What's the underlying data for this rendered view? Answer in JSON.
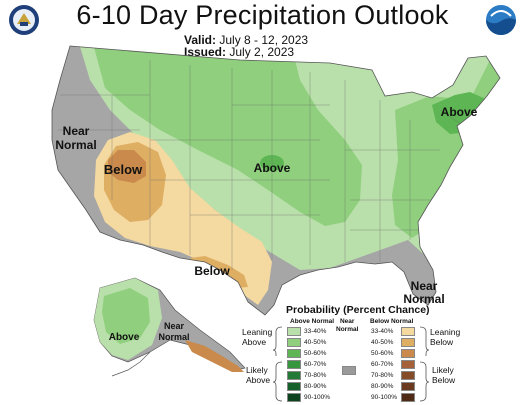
{
  "title": "6-10 Day Precipitation Outlook",
  "valid_label": "Valid:",
  "valid_value": "July 8 - 12, 2023",
  "issued_label": "Issued:",
  "issued_value": "July 2, 2023",
  "map_labels": {
    "near_normal_west_line1": "Near",
    "near_normal_west_line2": "Normal",
    "below_southwest": "Below",
    "above_central": "Above",
    "above_northeast": "Above",
    "below_texas": "Below",
    "near_normal_southeast_line1": "Near",
    "near_normal_southeast_line2": "Normal",
    "alaska_above": "Above",
    "alaska_near_line1": "Near",
    "alaska_near_line2": "Normal"
  },
  "legend": {
    "title": "Probability (Percent Chance)",
    "above_header": "Above Normal",
    "below_header": "Below Normal",
    "near_normal_line1": "Near",
    "near_normal_line2": "Normal",
    "leaning_above_line1": "Leaning",
    "leaning_above_line2": "Above",
    "likely_above_line1": "Likely",
    "likely_above_line2": "Above",
    "leaning_below_line1": "Leaning",
    "leaning_below_line2": "Below",
    "likely_below_line1": "Likely",
    "likely_below_line2": "Below",
    "above": [
      {
        "label": "33-40%",
        "color": "#b9e0ab"
      },
      {
        "label": "40-50%",
        "color": "#8fcf7d"
      },
      {
        "label": "50-60%",
        "color": "#5db653"
      },
      {
        "label": "60-70%",
        "color": "#36963e"
      },
      {
        "label": "70-80%",
        "color": "#237a36"
      },
      {
        "label": "80-90%",
        "color": "#155f2a"
      },
      {
        "label": "90-100%",
        "color": "#0c421d"
      }
    ],
    "below": [
      {
        "label": "33-40%",
        "color": "#f4d9a0"
      },
      {
        "label": "40-50%",
        "color": "#deae63"
      },
      {
        "label": "50-60%",
        "color": "#c98a4b"
      },
      {
        "label": "60-70%",
        "color": "#a5623a"
      },
      {
        "label": "70-80%",
        "color": "#864c2a"
      },
      {
        "label": "80-90%",
        "color": "#6b3a1f"
      },
      {
        "label": "90-100%",
        "color": "#4e2914"
      }
    ],
    "near_normal_color": "#9a9a9a"
  },
  "colors": {
    "near_normal": "#a6a6a6",
    "above_33": "#b9e0ab",
    "above_40": "#8fcf7d",
    "above_50": "#5db653",
    "below_33": "#f4d9a0",
    "below_40": "#deae63",
    "below_50": "#c98a4b"
  }
}
